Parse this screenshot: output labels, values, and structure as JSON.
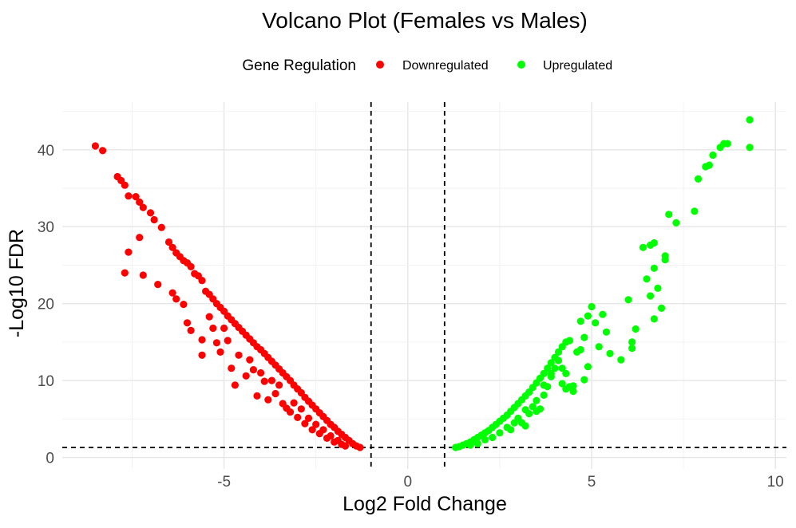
{
  "chart_data": {
    "type": "scatter",
    "title": "Volcano Plot (Females vs Males)",
    "xlabel": "Log2 Fold Change",
    "ylabel": "-Log10 FDR",
    "xlim": [
      -9.4,
      10.3
    ],
    "ylim": [
      -1.5,
      46.2
    ],
    "x_ticks": [
      -5,
      0,
      5,
      10
    ],
    "x_tick_labels": [
      "-5",
      "0",
      "5",
      "10"
    ],
    "y_ticks": [
      0,
      10,
      20,
      30,
      40
    ],
    "y_tick_labels": [
      "0",
      "10",
      "20",
      "30",
      "40"
    ],
    "grid": true,
    "legend": {
      "title": "Gene Regulation",
      "placement": "top",
      "entries": [
        {
          "label": "Downregulated",
          "color": "#ff0000"
        },
        {
          "label": "Upregulated",
          "color": "#00ff00"
        }
      ]
    },
    "threshold_lines": {
      "vertical": [
        -1,
        1
      ],
      "horizontal": [
        1.3
      ]
    },
    "series": [
      {
        "name": "Downregulated",
        "color": "#ff0000",
        "points": [
          [
            -8.5,
            40.5
          ],
          [
            -8.3,
            39.9
          ],
          [
            -7.9,
            36.5
          ],
          [
            -7.8,
            36.0
          ],
          [
            -7.7,
            35.4
          ],
          [
            -7.6,
            34.0
          ],
          [
            -7.4,
            33.9
          ],
          [
            -7.3,
            33.2
          ],
          [
            -7.2,
            32.5
          ],
          [
            -7.0,
            31.8
          ],
          [
            -6.9,
            30.9
          ],
          [
            -6.7,
            29.9
          ],
          [
            -6.5,
            28.0
          ],
          [
            -6.4,
            27.3
          ],
          [
            -6.3,
            26.6
          ],
          [
            -6.2,
            26.1
          ],
          [
            -6.1,
            25.6
          ],
          [
            -6.0,
            25.3
          ],
          [
            -5.9,
            24.8
          ],
          [
            -5.8,
            23.9
          ],
          [
            -5.7,
            23.6
          ],
          [
            -5.6,
            23.0
          ],
          [
            -5.5,
            21.6
          ],
          [
            -5.4,
            21.2
          ],
          [
            -5.3,
            20.6
          ],
          [
            -5.2,
            20.0
          ],
          [
            -5.1,
            19.5
          ],
          [
            -5.0,
            19.0
          ],
          [
            -4.9,
            18.4
          ],
          [
            -4.8,
            17.9
          ],
          [
            -4.7,
            17.4
          ],
          [
            -4.6,
            16.9
          ],
          [
            -4.5,
            16.4
          ],
          [
            -4.4,
            15.9
          ],
          [
            -4.3,
            15.4
          ],
          [
            -4.2,
            14.9
          ],
          [
            -4.1,
            14.4
          ],
          [
            -4.0,
            14.0
          ],
          [
            -3.9,
            13.5
          ],
          [
            -3.8,
            13.0
          ],
          [
            -3.7,
            12.5
          ],
          [
            -3.6,
            12.0
          ],
          [
            -3.5,
            11.5
          ],
          [
            -3.4,
            11.0
          ],
          [
            -3.3,
            10.5
          ],
          [
            -3.2,
            10.0
          ],
          [
            -3.1,
            9.4
          ],
          [
            -3.0,
            8.9
          ],
          [
            -2.9,
            8.4
          ],
          [
            -2.8,
            7.8
          ],
          [
            -2.7,
            7.3
          ],
          [
            -2.6,
            6.8
          ],
          [
            -2.5,
            6.3
          ],
          [
            -2.4,
            5.8
          ],
          [
            -2.3,
            5.3
          ],
          [
            -2.2,
            4.8
          ],
          [
            -2.1,
            4.3
          ],
          [
            -2.0,
            3.9
          ],
          [
            -1.9,
            3.4
          ],
          [
            -1.8,
            3.0
          ],
          [
            -1.7,
            2.6
          ],
          [
            -1.6,
            2.2
          ],
          [
            -1.5,
            1.8
          ],
          [
            -1.4,
            1.5
          ],
          [
            -1.3,
            1.3
          ],
          [
            -7.3,
            28.6
          ],
          [
            -7.6,
            26.7
          ],
          [
            -7.7,
            24.0
          ],
          [
            -7.2,
            23.7
          ],
          [
            -6.8,
            22.5
          ],
          [
            -6.4,
            21.4
          ],
          [
            -6.3,
            20.6
          ],
          [
            -6.1,
            19.9
          ],
          [
            -6.0,
            17.5
          ],
          [
            -5.9,
            16.5
          ],
          [
            -5.6,
            13.3
          ],
          [
            -5.6,
            15.3
          ],
          [
            -5.4,
            18.3
          ],
          [
            -5.3,
            16.8
          ],
          [
            -5.2,
            14.9
          ],
          [
            -5.1,
            13.7
          ],
          [
            -5.0,
            16.8
          ],
          [
            -4.9,
            15.2
          ],
          [
            -4.8,
            11.6
          ],
          [
            -4.7,
            9.4
          ],
          [
            -4.6,
            13.3
          ],
          [
            -4.4,
            10.6
          ],
          [
            -4.3,
            12.7
          ],
          [
            -4.2,
            11.4
          ],
          [
            -4.1,
            8.0
          ],
          [
            -4.0,
            11.0
          ],
          [
            -3.9,
            9.9
          ],
          [
            -3.8,
            7.5
          ],
          [
            -3.7,
            10.0
          ],
          [
            -3.6,
            8.3
          ],
          [
            -3.5,
            9.4
          ],
          [
            -3.4,
            7.0
          ],
          [
            -3.3,
            6.4
          ],
          [
            -3.2,
            5.9
          ],
          [
            -3.1,
            7.1
          ],
          [
            -3.0,
            5.2
          ],
          [
            -2.9,
            6.3
          ],
          [
            -2.8,
            4.4
          ],
          [
            -2.7,
            5.1
          ],
          [
            -2.6,
            3.6
          ],
          [
            -2.5,
            4.3
          ],
          [
            -2.4,
            3.1
          ],
          [
            -2.3,
            3.6
          ],
          [
            -2.2,
            2.5
          ],
          [
            -2.1,
            2.8
          ],
          [
            -2.0,
            2.0
          ],
          [
            -1.9,
            2.2
          ],
          [
            -1.8,
            1.7
          ],
          [
            -1.7,
            1.5
          ]
        ]
      },
      {
        "name": "Upregulated",
        "color": "#00ff00",
        "points": [
          [
            1.3,
            1.3
          ],
          [
            1.4,
            1.4
          ],
          [
            1.5,
            1.6
          ],
          [
            1.6,
            1.8
          ],
          [
            1.7,
            2.0
          ],
          [
            1.8,
            2.3
          ],
          [
            1.9,
            2.6
          ],
          [
            2.0,
            2.9
          ],
          [
            2.1,
            3.2
          ],
          [
            2.2,
            3.5
          ],
          [
            2.3,
            3.9
          ],
          [
            2.4,
            4.3
          ],
          [
            2.5,
            4.7
          ],
          [
            2.6,
            5.1
          ],
          [
            2.7,
            5.5
          ],
          [
            2.8,
            6.0
          ],
          [
            2.9,
            6.5
          ],
          [
            3.0,
            7.0
          ],
          [
            3.1,
            7.5
          ],
          [
            3.2,
            8.0
          ],
          [
            3.3,
            8.5
          ],
          [
            3.4,
            9.1
          ],
          [
            3.5,
            9.7
          ],
          [
            3.6,
            10.3
          ],
          [
            3.7,
            10.9
          ],
          [
            3.8,
            11.6
          ],
          [
            3.9,
            12.3
          ],
          [
            4.0,
            13.0
          ],
          [
            4.1,
            13.7
          ],
          [
            4.2,
            14.4
          ],
          [
            4.3,
            15.0
          ],
          [
            4.4,
            15.2
          ],
          [
            1.7,
            1.6
          ],
          [
            1.9,
            1.8
          ],
          [
            2.1,
            2.3
          ],
          [
            2.3,
            2.6
          ],
          [
            2.5,
            3.2
          ],
          [
            2.7,
            3.9
          ],
          [
            2.8,
            3.6
          ],
          [
            2.9,
            4.5
          ],
          [
            3.0,
            5.1
          ],
          [
            3.1,
            4.5
          ],
          [
            3.2,
            6.2
          ],
          [
            3.3,
            5.7
          ],
          [
            3.4,
            6.6
          ],
          [
            3.5,
            7.4
          ],
          [
            3.6,
            6.3
          ],
          [
            3.7,
            8.1
          ],
          [
            3.8,
            9.2
          ],
          [
            3.9,
            10.5
          ],
          [
            4.0,
            11.6
          ],
          [
            4.1,
            12.6
          ],
          [
            4.2,
            9.6
          ],
          [
            4.3,
            10.9
          ],
          [
            4.4,
            9.2
          ],
          [
            4.5,
            8.6
          ],
          [
            4.6,
            13.7
          ],
          [
            4.7,
            14.0
          ],
          [
            4.8,
            10.1
          ],
          [
            4.9,
            18.4
          ],
          [
            5.0,
            19.6
          ],
          [
            5.1,
            17.5
          ],
          [
            5.2,
            14.4
          ],
          [
            5.5,
            13.5
          ],
          [
            5.4,
            16.3
          ],
          [
            4.7,
            17.7
          ],
          [
            4.8,
            15.6
          ],
          [
            4.9,
            11.8
          ],
          [
            4.5,
            9.3
          ],
          [
            4.3,
            8.9
          ],
          [
            4.2,
            11.6
          ],
          [
            3.9,
            10.9
          ],
          [
            3.7,
            9.4
          ],
          [
            3.5,
            6.0
          ],
          [
            3.2,
            4.1
          ],
          [
            5.3,
            18.6
          ],
          [
            5.8,
            12.7
          ],
          [
            6.0,
            20.5
          ],
          [
            6.1,
            15.0
          ],
          [
            6.2,
            16.7
          ],
          [
            6.1,
            14.2
          ],
          [
            6.4,
            27.3
          ],
          [
            6.5,
            23.2
          ],
          [
            6.6,
            21.0
          ],
          [
            6.7,
            27.9
          ],
          [
            6.6,
            27.6
          ],
          [
            6.7,
            24.6
          ],
          [
            6.8,
            22.0
          ],
          [
            6.7,
            18.0
          ],
          [
            6.9,
            19.4
          ],
          [
            7.0,
            26.2
          ],
          [
            7.0,
            25.7
          ],
          [
            7.1,
            31.6
          ],
          [
            7.3,
            30.5
          ],
          [
            7.8,
            32.0
          ],
          [
            7.9,
            36.2
          ],
          [
            8.1,
            37.8
          ],
          [
            8.2,
            38.0
          ],
          [
            8.3,
            39.3
          ],
          [
            8.5,
            40.3
          ],
          [
            8.6,
            40.8
          ],
          [
            8.7,
            40.8
          ],
          [
            9.3,
            43.9
          ],
          [
            9.3,
            40.3
          ]
        ]
      }
    ]
  }
}
